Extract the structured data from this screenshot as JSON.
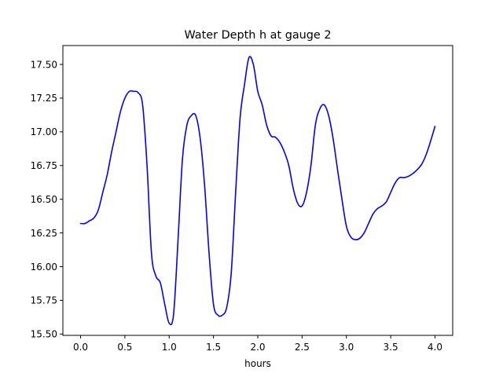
{
  "chart_data": {
    "type": "line",
    "title": "Water Depth h at gauge 2",
    "xlabel": "hours",
    "ylabel": "",
    "xlim": [
      -0.2,
      4.2
    ],
    "ylim": [
      15.49,
      17.64
    ],
    "xticks": [
      0.0,
      0.5,
      1.0,
      1.5,
      2.0,
      2.5,
      3.0,
      3.5,
      4.0
    ],
    "xtick_labels": [
      "0.0",
      "0.5",
      "1.0",
      "1.5",
      "2.0",
      "2.5",
      "3.0",
      "3.5",
      "4.0"
    ],
    "yticks": [
      15.5,
      15.75,
      16.0,
      16.25,
      16.5,
      16.75,
      17.0,
      17.25,
      17.5
    ],
    "ytick_labels": [
      "15.50",
      "15.75",
      "16.00",
      "16.25",
      "16.50",
      "16.75",
      "17.00",
      "17.25",
      "17.50"
    ],
    "grid": false,
    "series": [
      {
        "name": "",
        "color": "#0000ff",
        "x": [
          0.0,
          0.05,
          0.1,
          0.15,
          0.2,
          0.25,
          0.3,
          0.35,
          0.4,
          0.45,
          0.5,
          0.55,
          0.6,
          0.65,
          0.7,
          0.75,
          0.8,
          0.85,
          0.9,
          0.95,
          1.0,
          1.05,
          1.1,
          1.15,
          1.2,
          1.25,
          1.3,
          1.35,
          1.4,
          1.45,
          1.5,
          1.55,
          1.6,
          1.65,
          1.7,
          1.75,
          1.8,
          1.85,
          1.9,
          1.95,
          2.0,
          2.05,
          2.1,
          2.15,
          2.2,
          2.25,
          2.3,
          2.35,
          2.4,
          2.45,
          2.5,
          2.55,
          2.6,
          2.65,
          2.7,
          2.75,
          2.8,
          2.85,
          2.9,
          2.95,
          3.0,
          3.05,
          3.1,
          3.15,
          3.2,
          3.25,
          3.3,
          3.35,
          3.4,
          3.45,
          3.5,
          3.55,
          3.6,
          3.65,
          3.7,
          3.75,
          3.8,
          3.85,
          3.9,
          3.95,
          4.0
        ],
        "y": [
          16.32,
          16.32,
          16.34,
          16.36,
          16.42,
          16.55,
          16.68,
          16.85,
          17.0,
          17.15,
          17.25,
          17.3,
          17.3,
          17.29,
          17.2,
          16.75,
          16.1,
          15.93,
          15.88,
          15.72,
          15.58,
          15.65,
          16.2,
          16.8,
          17.05,
          17.12,
          17.12,
          16.95,
          16.6,
          16.1,
          15.72,
          15.64,
          15.64,
          15.7,
          15.95,
          16.55,
          17.1,
          17.35,
          17.55,
          17.5,
          17.3,
          17.2,
          17.05,
          16.97,
          16.96,
          16.92,
          16.85,
          16.75,
          16.58,
          16.47,
          16.45,
          16.55,
          16.75,
          17.05,
          17.17,
          17.2,
          17.12,
          16.95,
          16.72,
          16.5,
          16.3,
          16.22,
          16.2,
          16.21,
          16.25,
          16.32,
          16.39,
          16.43,
          16.45,
          16.48,
          16.55,
          16.62,
          16.66,
          16.66,
          16.67,
          16.69,
          16.72,
          16.76,
          16.83,
          16.93,
          17.04
        ]
      }
    ]
  }
}
